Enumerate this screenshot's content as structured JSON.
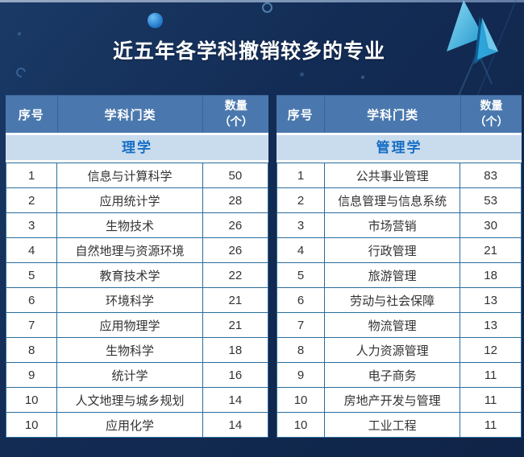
{
  "title": "近五年各学科撤销较多的专业",
  "headers": {
    "index": "序号",
    "discipline": "学科门类",
    "count_line1": "数量",
    "count_line2": "（个）"
  },
  "colors": {
    "background": "#132c55",
    "table_header": "#4a78ae",
    "subheader_bg": "#c9dcee",
    "subheader_text": "#1a6fc4",
    "table_border": "#2a6d9e",
    "cell_text": "#333333",
    "title_text": "#ffffff",
    "accent_arrow": "#35b5e5"
  },
  "chart_data": [
    {
      "type": "table",
      "title": "理学",
      "columns": [
        "序号",
        "学科门类",
        "数量（个）"
      ],
      "rows": [
        [
          "1",
          "信息与计算科学",
          "50"
        ],
        [
          "2",
          "应用统计学",
          "28"
        ],
        [
          "3",
          "生物技术",
          "26"
        ],
        [
          "4",
          "自然地理与资源环境",
          "26"
        ],
        [
          "5",
          "教育技术学",
          "22"
        ],
        [
          "6",
          "环境科学",
          "21"
        ],
        [
          "7",
          "应用物理学",
          "21"
        ],
        [
          "8",
          "生物科学",
          "18"
        ],
        [
          "9",
          "统计学",
          "16"
        ],
        [
          "10",
          "人文地理与城乡规划",
          "14"
        ],
        [
          "10",
          "应用化学",
          "14"
        ]
      ]
    },
    {
      "type": "table",
      "title": "管理学",
      "columns": [
        "序号",
        "学科门类",
        "数量（个）"
      ],
      "rows": [
        [
          "1",
          "公共事业管理",
          "83"
        ],
        [
          "2",
          "信息管理与信息系统",
          "53"
        ],
        [
          "3",
          "市场营销",
          "30"
        ],
        [
          "4",
          "行政管理",
          "21"
        ],
        [
          "5",
          "旅游管理",
          "18"
        ],
        [
          "6",
          "劳动与社会保障",
          "13"
        ],
        [
          "7",
          "物流管理",
          "13"
        ],
        [
          "8",
          "人力资源管理",
          "12"
        ],
        [
          "9",
          "电子商务",
          "11"
        ],
        [
          "10",
          "房地产开发与管理",
          "11"
        ],
        [
          "10",
          "工业工程",
          "11"
        ]
      ]
    }
  ]
}
